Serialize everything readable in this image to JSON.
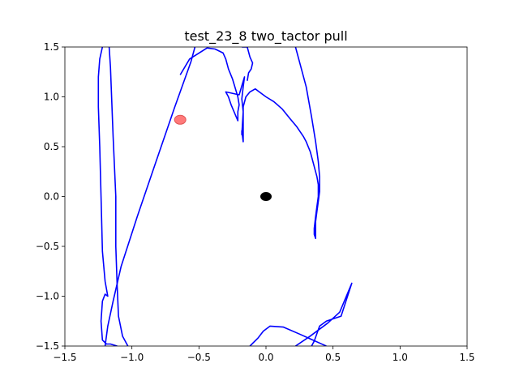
{
  "chart_data": {
    "type": "line",
    "title": "test_23_8 two_tactor pull",
    "xlabel": "",
    "ylabel": "",
    "xlim": [
      -1.5,
      1.5
    ],
    "ylim": [
      -1.5,
      1.5
    ],
    "xticks": [
      -1.5,
      -1.0,
      -0.5,
      0.0,
      0.5,
      1.0,
      1.5
    ],
    "yticks": [
      -1.5,
      -1.0,
      -0.5,
      0.0,
      0.5,
      1.0,
      1.5
    ],
    "xtick_labels": [
      "−1.5",
      "−1.0",
      "−0.5",
      "0.0",
      "0.5",
      "1.0",
      "1.5"
    ],
    "ytick_labels": [
      "−1.5",
      "−1.0",
      "−0.5",
      "0.0",
      "0.5",
      "1.0",
      "1.5"
    ],
    "grid": false,
    "line_color": "#0000ff",
    "series": [
      {
        "points": [
          [
            -1.22,
            1.5
          ],
          [
            -1.24,
            1.38
          ],
          [
            -1.25,
            1.2
          ],
          [
            -1.25,
            0.9
          ],
          [
            -1.24,
            0.5
          ],
          [
            -1.23,
            0.0
          ],
          [
            -1.22,
            -0.55
          ],
          [
            -1.2,
            -0.85
          ],
          [
            -1.18,
            -1.0
          ],
          [
            -1.2,
            -0.98
          ],
          [
            -1.22,
            -1.05
          ],
          [
            -1.23,
            -1.25
          ],
          [
            -1.22,
            -1.44
          ],
          [
            -1.19,
            -1.48
          ],
          [
            -1.16,
            -1.48
          ],
          [
            -1.11,
            -1.5
          ]
        ]
      },
      {
        "points": [
          [
            -1.17,
            1.5
          ],
          [
            -1.16,
            1.3
          ],
          [
            -1.14,
            0.6
          ],
          [
            -1.12,
            0.0
          ],
          [
            -1.12,
            -0.5
          ],
          [
            -1.11,
            -0.9
          ],
          [
            -1.1,
            -1.2
          ],
          [
            -1.07,
            -1.4
          ],
          [
            -1.03,
            -1.5
          ]
        ]
      },
      {
        "points": [
          [
            -1.2,
            -1.5
          ],
          [
            -1.18,
            -1.3
          ],
          [
            -1.14,
            -1.05
          ],
          [
            -1.08,
            -0.7
          ],
          [
            -0.96,
            -0.2
          ],
          [
            -0.82,
            0.35
          ],
          [
            -0.68,
            0.9
          ],
          [
            -0.56,
            1.35
          ],
          [
            -0.53,
            1.5
          ]
        ]
      },
      {
        "points": [
          [
            -0.64,
            1.22
          ],
          [
            -0.57,
            1.38
          ],
          [
            -0.44,
            1.49
          ],
          [
            -0.38,
            1.48
          ],
          [
            -0.32,
            1.44
          ],
          [
            -0.3,
            1.38
          ],
          [
            -0.28,
            1.28
          ],
          [
            -0.25,
            1.18
          ],
          [
            -0.21,
            1.0
          ],
          [
            -0.2,
            0.92
          ],
          [
            -0.21,
            0.85
          ],
          [
            -0.21,
            0.76
          ],
          [
            -0.26,
            0.92
          ],
          [
            -0.28,
            1.0
          ],
          [
            -0.3,
            1.05
          ],
          [
            -0.2,
            1.02
          ],
          [
            -0.16,
            1.2
          ],
          [
            -0.17,
            1.1
          ],
          [
            -0.18,
            0.98
          ],
          [
            -0.17,
            0.85
          ],
          [
            -0.18,
            0.62
          ],
          [
            -0.18,
            0.66
          ],
          [
            -0.17,
            0.55
          ],
          [
            -0.17,
            0.9
          ],
          [
            -0.15,
            1.0
          ],
          [
            -0.12,
            1.05
          ],
          [
            -0.08,
            1.08
          ],
          [
            -0.05,
            1.05
          ],
          [
            0.0,
            1.0
          ],
          [
            0.06,
            0.95
          ],
          [
            0.12,
            0.88
          ],
          [
            0.18,
            0.78
          ],
          [
            0.23,
            0.7
          ],
          [
            0.28,
            0.6
          ],
          [
            0.3,
            0.55
          ],
          [
            0.33,
            0.45
          ],
          [
            0.36,
            0.3
          ],
          [
            0.38,
            0.2
          ],
          [
            0.39,
            0.12
          ],
          [
            0.39,
            0.0
          ],
          [
            0.38,
            -0.1
          ],
          [
            0.37,
            -0.2
          ],
          [
            0.36,
            -0.32
          ],
          [
            0.36,
            -0.38
          ],
          [
            0.37,
            -0.42
          ],
          [
            0.37,
            -0.32
          ],
          [
            0.37,
            -0.25
          ],
          [
            0.38,
            -0.15
          ],
          [
            0.39,
            -0.05
          ],
          [
            0.4,
            0.05
          ],
          [
            0.4,
            0.2
          ],
          [
            0.39,
            0.35
          ],
          [
            0.37,
            0.55
          ],
          [
            0.34,
            0.8
          ],
          [
            0.3,
            1.1
          ],
          [
            0.26,
            1.3
          ],
          [
            0.22,
            1.5
          ]
        ]
      },
      {
        "points": [
          [
            -0.18,
            1.5
          ],
          [
            -0.14,
            1.5
          ],
          [
            -0.12,
            1.4
          ],
          [
            -0.1,
            1.34
          ],
          [
            -0.11,
            1.28
          ],
          [
            -0.13,
            1.24
          ],
          [
            -0.14,
            1.16
          ]
        ]
      },
      {
        "points": [
          [
            -0.12,
            -1.5
          ],
          [
            -0.06,
            -1.42
          ],
          [
            -0.02,
            -1.35
          ],
          [
            0.03,
            -1.3
          ],
          [
            0.13,
            -1.31
          ],
          [
            0.25,
            -1.38
          ],
          [
            0.4,
            -1.47
          ],
          [
            0.45,
            -1.5
          ]
        ]
      },
      {
        "points": [
          [
            0.22,
            -1.5
          ],
          [
            0.33,
            -1.4
          ],
          [
            0.46,
            -1.27
          ],
          [
            0.55,
            -1.16
          ],
          [
            0.64,
            -0.87
          ],
          [
            0.56,
            -1.2
          ],
          [
            0.45,
            -1.25
          ],
          [
            0.4,
            -1.3
          ],
          [
            0.36,
            -1.45
          ],
          [
            0.34,
            -1.5
          ]
        ]
      }
    ],
    "markers": [
      {
        "x": -0.64,
        "y": 0.77,
        "color": "#ff6b6b",
        "alpha": 0.9
      },
      {
        "x": 0.0,
        "y": 0.0,
        "color": "#000000",
        "alpha": 1.0
      }
    ]
  }
}
